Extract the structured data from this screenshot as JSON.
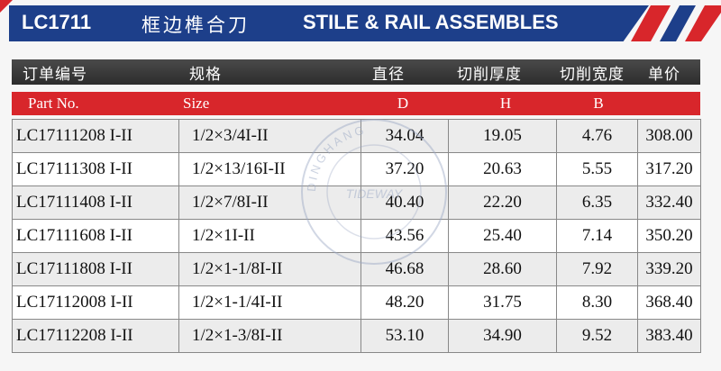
{
  "title": {
    "code": "LC1711",
    "chinese": "框边榫合刀",
    "english": "STILE & RAIL ASSEMBLES"
  },
  "header_cn": [
    "订单编号",
    "规格",
    "直径",
    "切削厚度",
    "切削宽度",
    "单价"
  ],
  "header_en": [
    "Part No.",
    "Size",
    "D",
    "H",
    "B",
    ""
  ],
  "rows": [
    {
      "part": "LC17111208 I-II",
      "size": "1/2×3/4I-II",
      "d": "34.04",
      "h": "19.05",
      "b": "4.76",
      "price": "308.00"
    },
    {
      "part": "LC17111308 I-II",
      "size": "1/2×13/16I-II",
      "d": "37.20",
      "h": "20.63",
      "b": "5.55",
      "price": "317.20"
    },
    {
      "part": "LC17111408 I-II",
      "size": "1/2×7/8I-II",
      "d": "40.40",
      "h": "22.20",
      "b": "6.35",
      "price": "332.40"
    },
    {
      "part": "LC17111608 I-II",
      "size": "1/2×1I-II",
      "d": "43.56",
      "h": "25.40",
      "b": "7.14",
      "price": "350.20"
    },
    {
      "part": "LC17111808 I-II",
      "size": "1/2×1-1/8I-II",
      "d": "46.68",
      "h": "28.60",
      "b": "7.92",
      "price": "339.20"
    },
    {
      "part": "LC17112008 I-II",
      "size": "1/2×1-1/4I-II",
      "d": "48.20",
      "h": "31.75",
      "b": "8.30",
      "price": "368.40"
    },
    {
      "part": "LC17112208 I-II",
      "size": "1/2×1-3/8I-II",
      "d": "53.10",
      "h": "34.90",
      "b": "9.52",
      "price": "383.40"
    }
  ],
  "watermark": {
    "top": "DINGHANG",
    "middle": "TIDEWAY"
  },
  "colors": {
    "blue": "#1d3f8a",
    "red": "#d8262b",
    "dark": "#2c2c2c"
  }
}
